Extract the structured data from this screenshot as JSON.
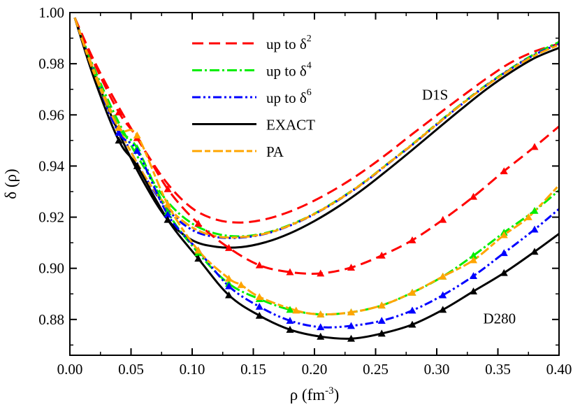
{
  "chart_data": {
    "type": "line",
    "title": "",
    "xlabel": {
      "base": "ρ (fm",
      "sup": "-3",
      "tail": ")"
    },
    "ylabel": "δ (ρ)",
    "xlim": [
      0.0,
      0.4
    ],
    "ylim": [
      0.866,
      1.0
    ],
    "xticks": [
      "0.00",
      "0.05",
      "0.10",
      "0.15",
      "0.20",
      "0.25",
      "0.30",
      "0.35",
      "0.40"
    ],
    "yticks": [
      "0.88",
      "0.90",
      "0.92",
      "0.94",
      "0.96",
      "0.98",
      "1.00"
    ],
    "grid": false,
    "legend_position": "top-center",
    "curve_labels": [
      {
        "text": "D1S",
        "x": 0.288,
        "y": 0.966
      },
      {
        "text": "D280",
        "x": 0.338,
        "y": 0.8785
      }
    ],
    "styles": {
      "d2": {
        "legend": "up to  δ",
        "sup": "2",
        "color": "#ff0000",
        "dash": "16,8"
      },
      "d4": {
        "legend": "up to  δ",
        "sup": "4",
        "color": "#00ee00",
        "dash": "14,4,3,4"
      },
      "d6": {
        "legend": "up to  δ",
        "sup": "6",
        "color": "#0000ff",
        "dash": "12,4,3,4,3,4"
      },
      "exact": {
        "legend": "EXACT",
        "sup": "",
        "color": "#000000",
        "dash": ""
      },
      "pa": {
        "legend": "PA",
        "sup": "",
        "color": "#ffa500",
        "dash": "14,4,8,4"
      }
    },
    "series": [
      {
        "name": "D1S up to δ2",
        "style": "d2",
        "markers": false,
        "x": [
          0.004,
          0.02,
          0.04,
          0.06,
          0.08,
          0.1,
          0.12,
          0.14,
          0.16,
          0.18,
          0.2,
          0.22,
          0.24,
          0.26,
          0.28,
          0.3,
          0.32,
          0.34,
          0.36,
          0.38,
          0.4
        ],
        "y": [
          0.998,
          0.981,
          0.963,
          0.947,
          0.933,
          0.9235,
          0.919,
          0.9179,
          0.9192,
          0.9222,
          0.9265,
          0.9318,
          0.938,
          0.945,
          0.9525,
          0.9598,
          0.967,
          0.974,
          0.9803,
          0.9848,
          0.9878
        ]
      },
      {
        "name": "D1S up to δ4",
        "style": "d4",
        "markers": false,
        "x": [
          0.004,
          0.02,
          0.04,
          0.06,
          0.08,
          0.1,
          0.12,
          0.14,
          0.16,
          0.18,
          0.2,
          0.22,
          0.24,
          0.26,
          0.28,
          0.3,
          0.32,
          0.34,
          0.36,
          0.38,
          0.4
        ],
        "y": [
          0.998,
          0.978,
          0.957,
          0.94,
          0.926,
          0.9175,
          0.9135,
          0.9125,
          0.9138,
          0.917,
          0.9214,
          0.927,
          0.9335,
          0.941,
          0.9485,
          0.9565,
          0.9642,
          0.9715,
          0.978,
          0.9838,
          0.9885
        ]
      },
      {
        "name": "D1S up to δ6",
        "style": "d6",
        "markers": false,
        "x": [
          0.004,
          0.02,
          0.04,
          0.06,
          0.08,
          0.1,
          0.12,
          0.14,
          0.16,
          0.18,
          0.2,
          0.22,
          0.24,
          0.26,
          0.28,
          0.3,
          0.32,
          0.34,
          0.36,
          0.38,
          0.4
        ],
        "y": [
          0.998,
          0.977,
          0.955,
          0.937,
          0.923,
          0.915,
          0.9122,
          0.912,
          0.9135,
          0.9167,
          0.9212,
          0.9268,
          0.9333,
          0.9408,
          0.9483,
          0.9562,
          0.964,
          0.9713,
          0.9778,
          0.9835,
          0.9878
        ]
      },
      {
        "name": "D1S exact",
        "style": "exact",
        "markers": false,
        "x": [
          0.004,
          0.02,
          0.04,
          0.06,
          0.08,
          0.1,
          0.12,
          0.14,
          0.16,
          0.18,
          0.2,
          0.22,
          0.24,
          0.26,
          0.28,
          0.3,
          0.32,
          0.34,
          0.36,
          0.38,
          0.4
        ],
        "y": [
          0.998,
          0.976,
          0.953,
          0.934,
          0.919,
          0.911,
          0.9084,
          0.9083,
          0.9102,
          0.9137,
          0.9185,
          0.9243,
          0.931,
          0.9385,
          0.9463,
          0.9543,
          0.9622,
          0.9698,
          0.9765,
          0.9822,
          0.9862
        ]
      },
      {
        "name": "D1S PA",
        "style": "pa",
        "markers": false,
        "x": [
          0.004,
          0.02,
          0.04,
          0.06,
          0.08,
          0.1,
          0.12,
          0.14,
          0.16,
          0.18,
          0.2,
          0.22,
          0.24,
          0.26,
          0.28,
          0.3,
          0.32,
          0.34,
          0.36,
          0.38,
          0.4
        ],
        "y": [
          0.998,
          0.977,
          0.955,
          0.937,
          0.924,
          0.916,
          0.9125,
          0.9122,
          0.9136,
          0.9168,
          0.9213,
          0.9269,
          0.9334,
          0.9409,
          0.9484,
          0.9563,
          0.964,
          0.9712,
          0.9776,
          0.9832,
          0.9874
        ]
      },
      {
        "name": "D280 up to δ2",
        "style": "d2",
        "markers": true,
        "x": [
          0.004,
          0.02,
          0.04,
          0.055,
          0.08,
          0.105,
          0.13,
          0.155,
          0.18,
          0.205,
          0.23,
          0.255,
          0.28,
          0.305,
          0.33,
          0.355,
          0.38,
          0.4
        ],
        "y": [
          0.998,
          0.98,
          0.961,
          0.951,
          0.931,
          0.9175,
          0.908,
          0.9012,
          0.8985,
          0.898,
          0.9003,
          0.905,
          0.911,
          0.919,
          0.928,
          0.938,
          0.9475,
          0.9555
        ]
      },
      {
        "name": "D280 up to δ4",
        "style": "d4",
        "markers": true,
        "x": [
          0.004,
          0.02,
          0.04,
          0.055,
          0.08,
          0.105,
          0.13,
          0.155,
          0.18,
          0.205,
          0.23,
          0.255,
          0.28,
          0.305,
          0.33,
          0.355,
          0.38,
          0.4
        ],
        "y": [
          0.998,
          0.976,
          0.955,
          0.947,
          0.922,
          0.906,
          0.894,
          0.888,
          0.8838,
          0.882,
          0.8828,
          0.8855,
          0.8905,
          0.8968,
          0.905,
          0.914,
          0.9225,
          0.9305
        ]
      },
      {
        "name": "D280 up to δ6",
        "style": "d6",
        "markers": true,
        "x": [
          0.004,
          0.02,
          0.04,
          0.055,
          0.08,
          0.105,
          0.13,
          0.155,
          0.18,
          0.205,
          0.23,
          0.255,
          0.28,
          0.305,
          0.33,
          0.355,
          0.38,
          0.4
        ],
        "y": [
          0.998,
          0.975,
          0.953,
          0.946,
          0.921,
          0.907,
          0.893,
          0.885,
          0.8795,
          0.877,
          0.8775,
          0.8795,
          0.8835,
          0.8895,
          0.897,
          0.906,
          0.9152,
          0.9232
        ]
      },
      {
        "name": "D280 exact",
        "style": "exact",
        "markers": true,
        "x": [
          0.004,
          0.02,
          0.04,
          0.055,
          0.08,
          0.105,
          0.13,
          0.155,
          0.18,
          0.205,
          0.23,
          0.255,
          0.28,
          0.305,
          0.33,
          0.355,
          0.38,
          0.4
        ],
        "y": [
          0.998,
          0.974,
          0.95,
          0.94,
          0.919,
          0.9038,
          0.8895,
          0.8815,
          0.876,
          0.8733,
          0.8725,
          0.8745,
          0.878,
          0.8838,
          0.891,
          0.8982,
          0.9065,
          0.9135
        ]
      },
      {
        "name": "D280 PA",
        "style": "pa",
        "markers": true,
        "x": [
          0.004,
          0.02,
          0.04,
          0.055,
          0.08,
          0.105,
          0.13,
          0.14,
          0.155,
          0.185,
          0.205,
          0.23,
          0.255,
          0.28,
          0.305,
          0.33,
          0.355,
          0.375,
          0.4
        ],
        "y": [
          0.998,
          0.976,
          0.955,
          0.952,
          0.925,
          0.907,
          0.896,
          0.8935,
          0.8888,
          0.8835,
          0.882,
          0.8828,
          0.8855,
          0.8905,
          0.8968,
          0.9032,
          0.913,
          0.92,
          0.9325
        ]
      }
    ]
  }
}
